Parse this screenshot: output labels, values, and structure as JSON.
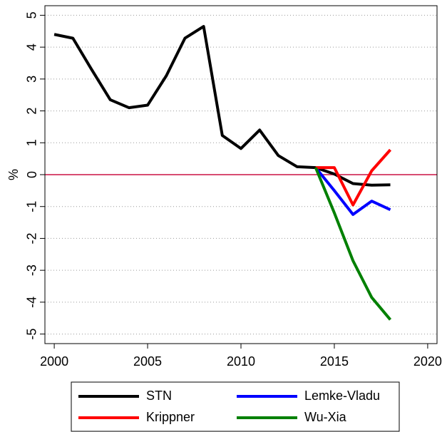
{
  "chart_data": {
    "type": "line",
    "y_label": "%",
    "x": [
      2000,
      2001,
      2002,
      2003,
      2004,
      2005,
      2006,
      2007,
      2008,
      2009,
      2010,
      2011,
      2012,
      2013,
      2014,
      2015,
      2016,
      2017,
      2018
    ],
    "series": [
      {
        "name": "STN",
        "color": "#000000",
        "values": [
          4.4,
          4.28,
          3.3,
          2.35,
          2.1,
          2.18,
          3.1,
          4.28,
          4.65,
          1.23,
          0.82,
          1.4,
          0.6,
          0.25,
          0.22,
          0.02,
          -0.28,
          -0.33,
          -0.32
        ]
      },
      {
        "name": "Lemke-Vladu",
        "color": "#0000ff",
        "values": [
          null,
          null,
          null,
          null,
          null,
          null,
          null,
          null,
          null,
          null,
          null,
          null,
          null,
          null,
          0.22,
          -0.5,
          -1.25,
          -0.83,
          -1.1
        ]
      },
      {
        "name": "Krippner",
        "color": "#ff0000",
        "values": [
          null,
          null,
          null,
          null,
          null,
          null,
          null,
          null,
          null,
          null,
          null,
          null,
          null,
          null,
          0.22,
          0.22,
          -0.95,
          0.12,
          0.78
        ]
      },
      {
        "name": "Wu-Xia",
        "color": "#008000",
        "values": [
          null,
          null,
          null,
          null,
          null,
          null,
          null,
          null,
          null,
          null,
          null,
          null,
          null,
          null,
          0.22,
          -1.2,
          -2.7,
          -3.85,
          -4.55
        ]
      }
    ],
    "xlim": [
      1999.5,
      2020.5
    ],
    "xticks": [
      2000,
      2005,
      2010,
      2015,
      2020
    ],
    "ylim": [
      -5.3,
      5.3
    ],
    "yticks": [
      -5,
      -4,
      -3,
      -2,
      -1,
      0,
      1,
      2,
      3,
      4,
      5
    ],
    "grid": true,
    "hline": {
      "value": 0,
      "color": "#cc1144"
    },
    "legend": "bottom"
  }
}
